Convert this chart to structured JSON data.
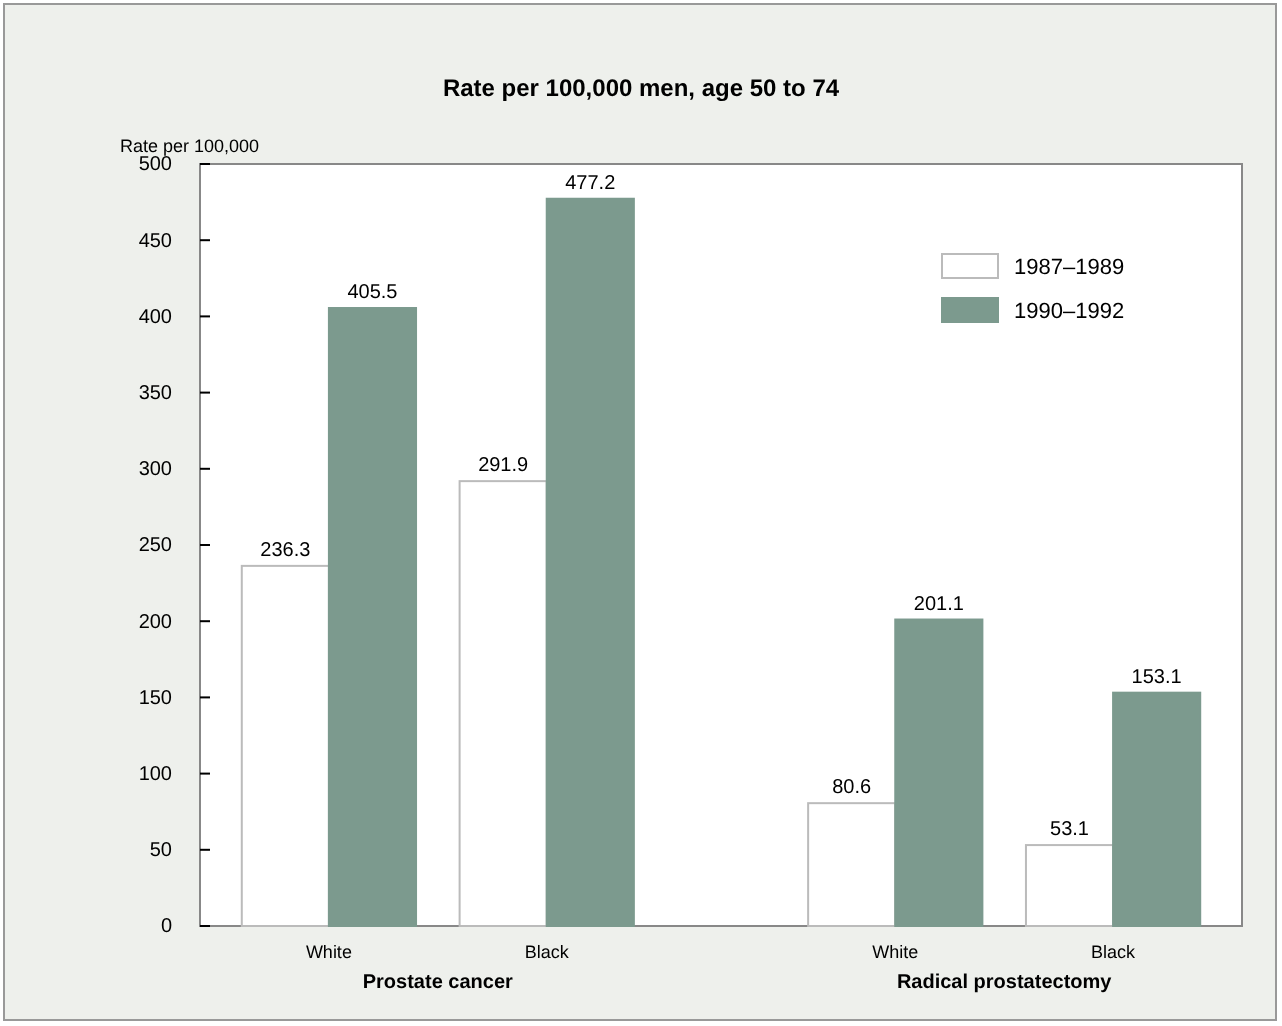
{
  "chart_data": {
    "type": "bar",
    "title": "Rate per 100,000 men, age 50 to 74",
    "ylabel": "Rate per 100,000",
    "categories": [
      "White",
      "Black",
      "White",
      "Black"
    ],
    "series": [
      {
        "name": "1987–1989",
        "color": "#ffffff",
        "values": [
          236.3,
          291.9,
          80.6,
          53.1
        ]
      },
      {
        "name": "1990–1992",
        "color": "#7c9a8e",
        "values": [
          405.5,
          477.2,
          201.1,
          153.1
        ]
      }
    ],
    "annotations": [
      "Prostate cancer",
      "Radical prostatectomy"
    ],
    "ylim": [
      0,
      500
    ],
    "yticks": [
      0,
      50,
      100,
      150,
      200,
      250,
      300,
      350,
      400,
      450,
      500
    ],
    "data_labels": true,
    "legend": "top right",
    "grid": false
  }
}
